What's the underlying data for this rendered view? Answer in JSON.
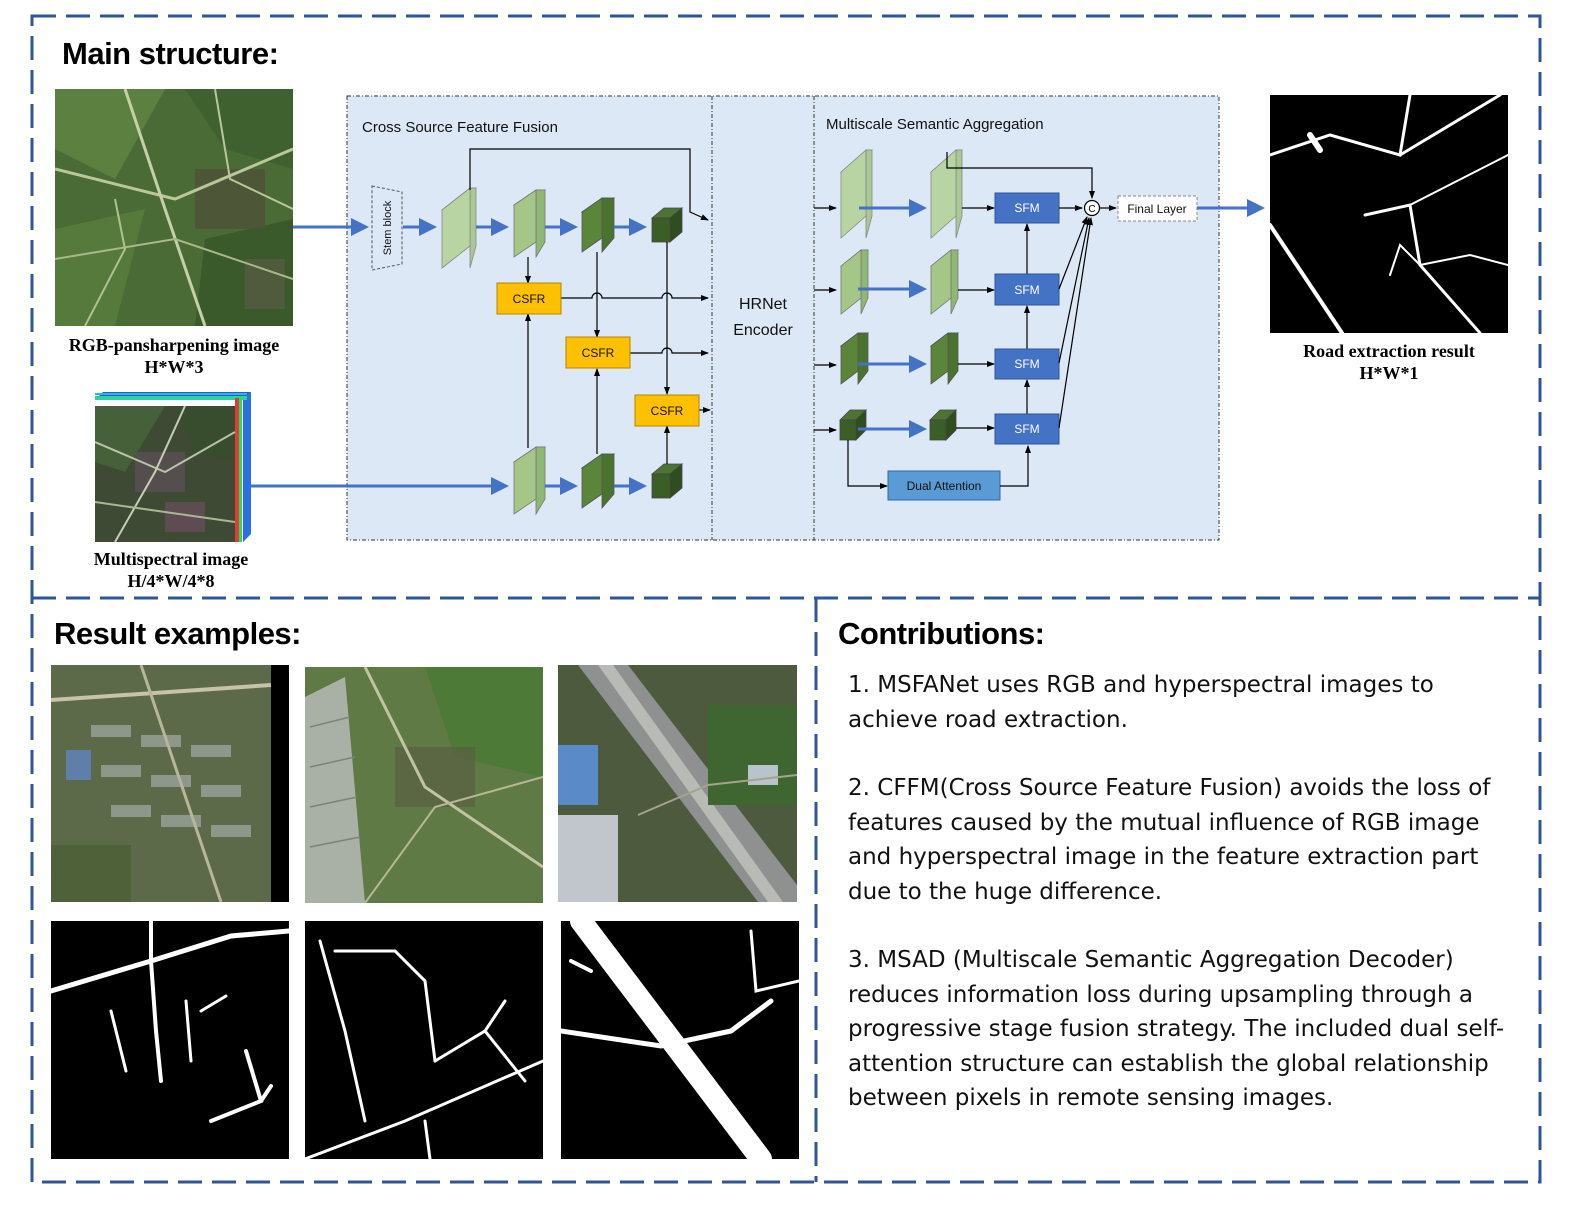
{
  "main": {
    "heading": "Main structure:",
    "rgb_caption_line1": "RGB-pansharpening image",
    "rgb_caption_line2": "H*W*3",
    "ms_caption_line1": "Multispectral image",
    "ms_caption_line2": "H/4*W/4*8",
    "result_caption_line1": "Road extraction result",
    "result_caption_line2": "H*W*1"
  },
  "diagram": {
    "cffm_title": "Cross Source Feature Fusion",
    "msa_title": "Multiscale Semantic Aggregation",
    "stem_label": "Stem block",
    "csfr_label": "CSFR",
    "hrnet_line1": "HRNet",
    "hrnet_line2": "Encoder",
    "sfm_label": "SFM",
    "dual_attention_label": "Dual Attention",
    "concat_label": "C",
    "final_layer_label": "Final Layer"
  },
  "results": {
    "heading": "Result examples:"
  },
  "contributions": {
    "heading": "Contributions:",
    "items": [
      "1. MSFANet uses RGB and hyperspectral images to achieve road extraction.",
      "2. CFFM(Cross Source Feature Fusion) avoids the loss of features caused by the mutual influence of RGB image and hyperspectral image in the feature extraction part due to the huge difference.",
      "3. MSAD (Multiscale Semantic Aggregation Decoder) reduces information loss during upsampling through a progressive stage fusion strategy. The included dual self-attention structure can establish the global relationship between pixels in remote sensing images."
    ]
  },
  "colors": {
    "frame_dash": "#2f5597",
    "panel_bg": "#dce8f5",
    "arrow_blue": "#4472c4",
    "csfr_fill": "#ffc000",
    "sfm_fill": "#4472c4",
    "dual_attention_fill": "#5b9bd5"
  }
}
